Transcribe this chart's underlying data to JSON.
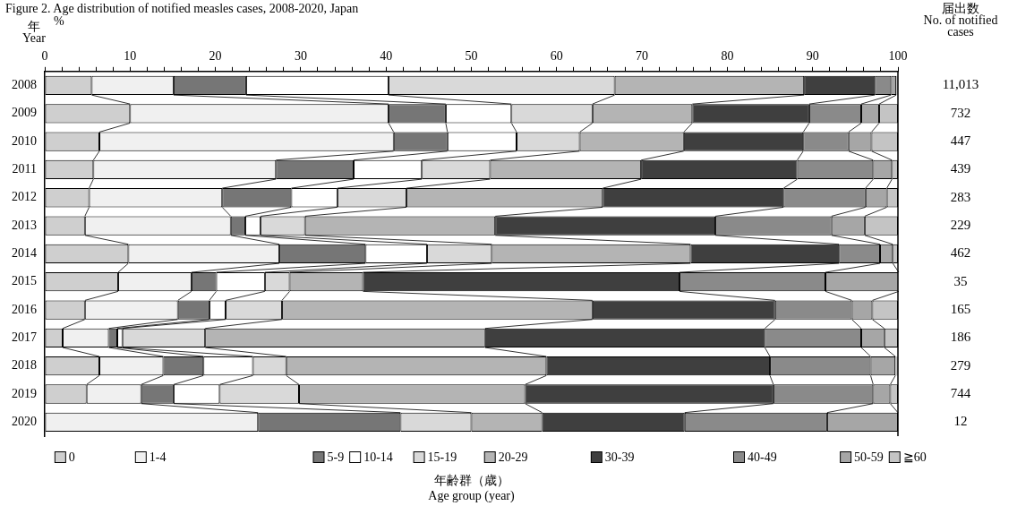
{
  "chart_data": {
    "type": "bar",
    "orientation": "horizontal",
    "stacked": true,
    "title": "Figure 2. Age distribution of notified measles cases, 2008-2020, Japan",
    "xlabel": "年齢群（歳）\nAge group (year)",
    "ylabel": "年\nYear",
    "annotations": [
      "%",
      "届出数\nNo. of notified\ncases",
      "11,013",
      "732",
      "447",
      "439",
      "283",
      "229",
      "462",
      "35",
      "165",
      "186",
      "279",
      "744",
      "12"
    ],
    "categories": [
      "2008",
      "2009",
      "2010",
      "2011",
      "2012",
      "2013",
      "2014",
      "2015",
      "2016",
      "2017",
      "2018",
      "2019",
      "2020"
    ],
    "xlim": [
      0,
      100
    ],
    "xticks": [
      0,
      {
        "value": 2,
        "label": null
      },
      {
        "value": 4,
        "label": null
      },
      {
        "value": 6,
        "label": null
      },
      {
        "value": 8,
        "label": null
      },
      10,
      {
        "value": 12,
        "label": null
      },
      {
        "value": 14,
        "label": null
      },
      {
        "value": 16,
        "label": null
      },
      {
        "value": 18,
        "label": null
      },
      20,
      {
        "value": 22,
        "label": null
      },
      {
        "value": 24,
        "label": null
      },
      {
        "value": 26,
        "label": null
      },
      {
        "value": 28,
        "label": null
      },
      30,
      {
        "value": 32,
        "label": null
      },
      {
        "value": 34,
        "label": null
      },
      {
        "value": 36,
        "label": null
      },
      {
        "value": 38,
        "label": null
      },
      40,
      {
        "value": 42,
        "label": null
      },
      {
        "value": 44,
        "label": null
      },
      {
        "value": 46,
        "label": null
      },
      {
        "value": 48,
        "label": null
      },
      50,
      {
        "value": 52,
        "label": null
      },
      {
        "value": 54,
        "label": null
      },
      {
        "value": 56,
        "label": null
      },
      {
        "value": 58,
        "label": null
      },
      60,
      {
        "value": 62,
        "label": null
      },
      {
        "value": 64,
        "label": null
      },
      {
        "value": 66,
        "label": null
      },
      {
        "value": 68,
        "label": null
      },
      70,
      {
        "value": 72,
        "label": null
      },
      {
        "value": 74,
        "label": null
      },
      {
        "value": 76,
        "label": null
      },
      {
        "value": 78,
        "label": null
      },
      80,
      {
        "value": 82,
        "label": null
      },
      {
        "value": 84,
        "label": null
      },
      {
        "value": 86,
        "label": null
      },
      {
        "value": 88,
        "label": null
      },
      90,
      {
        "value": 92,
        "label": null
      },
      {
        "value": 94,
        "label": null
      },
      {
        "value": 96,
        "label": null
      },
      {
        "value": 98,
        "label": null
      },
      100
    ],
    "series": [
      {
        "name": "0",
        "color": "#cfcfcf",
        "values": [
          5.5,
          10.0,
          6.4,
          5.7,
          5.2,
          4.7,
          9.8,
          8.6,
          4.7,
          2.1,
          6.4,
          4.9,
          0
        ]
      },
      {
        "name": "1-4",
        "color": "#f0f0f0",
        "values": [
          9.6,
          30.3,
          34.5,
          21.4,
          15.6,
          17.1,
          17.7,
          8.6,
          10.9,
          5.4,
          7.5,
          6.4,
          25.0
        ]
      },
      {
        "name": "5-9",
        "color": "#767676",
        "values": [
          8.5,
          6.7,
          6.3,
          9.1,
          8.1,
          1.7,
          10.1,
          2.9,
          3.7,
          1.0,
          4.7,
          3.8,
          16.7
        ]
      },
      {
        "name": "10-14",
        "color": "#ffffff",
        "values": [
          16.7,
          7.7,
          8.1,
          8.0,
          5.4,
          1.8,
          7.2,
          5.7,
          1.9,
          0.6,
          5.8,
          5.4,
          0
        ]
      },
      {
        "name": "15-19",
        "color": "#d9d9d9",
        "values": [
          26.5,
          9.5,
          7.4,
          8.0,
          8.1,
          5.2,
          7.6,
          2.9,
          6.6,
          9.7,
          3.9,
          9.3,
          8.3
        ]
      },
      {
        "name": "20-29",
        "color": "#b4b4b4",
        "values": [
          22.2,
          11.7,
          12.2,
          17.7,
          23.0,
          22.3,
          23.3,
          8.6,
          36.4,
          32.8,
          30.5,
          26.5,
          8.3
        ]
      },
      {
        "name": "30-39",
        "color": "#3f3f3f",
        "values": [
          8.3,
          13.7,
          14.0,
          18.3,
          21.2,
          25.8,
          17.4,
          37.1,
          21.4,
          32.8,
          26.2,
          29.1,
          16.7
        ]
      },
      {
        "name": "40-49",
        "color": "#8a8a8a",
        "values": [
          1.9,
          6.1,
          5.3,
          8.9,
          9.6,
          13.6,
          4.8,
          17.1,
          9.0,
          11.3,
          11.8,
          11.7,
          16.7
        ]
      },
      {
        "name": "50-59",
        "color": "#a6a6a6",
        "values": [
          0.6,
          2.1,
          2.7,
          2.2,
          2.5,
          3.9,
          1.5,
          8.6,
          2.4,
          2.7,
          2.9,
          2.0,
          8.3
        ]
      },
      {
        "name": "≧60",
        "color": "#c4c4c4",
        "values": [
          0.2,
          2.2,
          3.1,
          0.7,
          1.3,
          3.9,
          0.6,
          0,
          3.0,
          1.6,
          0.3,
          0.9,
          0
        ]
      }
    ],
    "legend": "bottom",
    "grid": false
  }
}
